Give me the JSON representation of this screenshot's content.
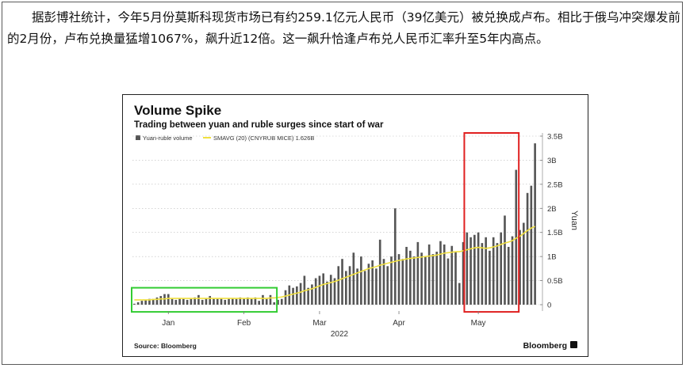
{
  "article": {
    "text": "据彭博社统计，今年5月份莫斯科现货市场已有约259.1亿元人民币（39亿美元）被兑换成卢布。相比于俄乌冲突爆发前的2月份，卢布兑换量猛增1067%，飙升近12倍。这一飙升恰逢卢布兑人民币汇率升至5年内高点。"
  },
  "chart_data": {
    "type": "bar",
    "title": "Volume Spike",
    "subtitle": "Trading between yuan and ruble surges since start of war",
    "source": "Source: Bloomberg",
    "brand": "Bloomberg",
    "ylabel": "Yuan",
    "ylim": [
      -0.1,
      3.5
    ],
    "yticks": [
      {
        "value": 3.5,
        "label": "3.5B"
      },
      {
        "value": 3.0,
        "label": "3B"
      },
      {
        "value": 2.5,
        "label": "2.5B"
      },
      {
        "value": 2.0,
        "label": "2B"
      },
      {
        "value": 1.5,
        "label": "1.5B"
      },
      {
        "value": 1.0,
        "label": "1B"
      },
      {
        "value": 0.5,
        "label": "0.5B"
      },
      {
        "value": 0.0,
        "label": "0"
      }
    ],
    "xticks": [
      {
        "index": 9,
        "label": "Jan"
      },
      {
        "index": 29,
        "label": "Feb"
      },
      {
        "index": 49,
        "label": "Mar"
      },
      {
        "index": 70,
        "label": "Apr"
      },
      {
        "index": 91,
        "label": "May"
      }
    ],
    "year_label": "2022",
    "legend": {
      "placement": "top-left",
      "entries": [
        {
          "label": "Yuan-ruble volume",
          "color": "#555555"
        },
        {
          "label": "SMAVG (20)  (CNYRUB MICE)  1.626B",
          "color": "#f0e040"
        }
      ]
    },
    "colors": {
      "bars": "#555555",
      "line": "#f0e040",
      "highlight_feb": "#33cc33",
      "highlight_may": "#e02020"
    },
    "highlights": [
      {
        "name": "pre-war",
        "range": [
          0,
          37
        ],
        "color": "#33cc33"
      },
      {
        "name": "may",
        "range": [
          88,
          101
        ],
        "color": "#e02020"
      }
    ],
    "values": [
      0.02,
      0.05,
      0.08,
      0.1,
      0.12,
      0.12,
      0.15,
      0.18,
      0.22,
      0.22,
      0.12,
      0.1,
      0.13,
      0.12,
      0.1,
      0.12,
      0.15,
      0.2,
      0.1,
      0.14,
      0.18,
      0.12,
      0.12,
      0.14,
      0.1,
      0.12,
      0.14,
      0.12,
      0.15,
      0.14,
      0.15,
      0.12,
      0.15,
      0.08,
      0.2,
      0.12,
      0.2,
      0.05,
      0.1,
      0.12,
      0.3,
      0.4,
      0.35,
      0.38,
      0.45,
      0.6,
      0.35,
      0.42,
      0.55,
      0.6,
      0.65,
      0.48,
      0.62,
      0.55,
      0.8,
      0.95,
      0.7,
      0.8,
      1.08,
      0.75,
      1.0,
      0.7,
      0.85,
      0.92,
      0.75,
      1.35,
      0.95,
      0.8,
      1.0,
      2.0,
      1.05,
      0.95,
      1.2,
      1.12,
      1.0,
      1.3,
      1.08,
      1.0,
      1.25,
      1.05,
      1.1,
      1.32,
      1.25,
      0.96,
      1.22,
      1.1,
      0.45,
      1.3,
      1.5,
      1.4,
      1.45,
      1.5,
      1.28,
      1.4,
      1.12,
      1.4,
      1.28,
      1.5,
      1.85,
      1.2,
      1.42,
      2.8,
      1.55,
      1.7,
      2.32,
      2.47,
      3.35
    ],
    "smavg": [
      0.1,
      0.1,
      0.1,
      0.1,
      0.1,
      0.11,
      0.11,
      0.12,
      0.12,
      0.13,
      0.13,
      0.13,
      0.13,
      0.13,
      0.13,
      0.13,
      0.13,
      0.13,
      0.13,
      0.13,
      0.13,
      0.13,
      0.13,
      0.13,
      0.13,
      0.13,
      0.13,
      0.13,
      0.13,
      0.13,
      0.13,
      0.13,
      0.13,
      0.13,
      0.13,
      0.13,
      0.14,
      0.14,
      0.15,
      0.16,
      0.18,
      0.2,
      0.22,
      0.24,
      0.26,
      0.29,
      0.31,
      0.33,
      0.36,
      0.39,
      0.42,
      0.44,
      0.46,
      0.48,
      0.51,
      0.54,
      0.57,
      0.6,
      0.63,
      0.66,
      0.69,
      0.72,
      0.75,
      0.77,
      0.79,
      0.82,
      0.84,
      0.86,
      0.88,
      0.9,
      0.92,
      0.93,
      0.95,
      0.96,
      0.97,
      0.98,
      0.99,
      1.0,
      1.01,
      1.02,
      1.03,
      1.05,
      1.07,
      1.08,
      1.09,
      1.1,
      1.1,
      1.12,
      1.14,
      1.16,
      1.18,
      1.19,
      1.18,
      1.17,
      1.18,
      1.2,
      1.22,
      1.25,
      1.28,
      1.3,
      1.33,
      1.38,
      1.42,
      1.48,
      1.54,
      1.59,
      1.626
    ]
  }
}
